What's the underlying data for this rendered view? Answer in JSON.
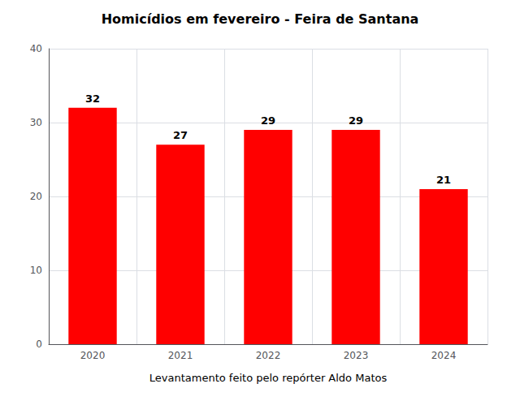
{
  "chart_data": {
    "type": "bar",
    "title": "Homicídios em fevereiro - Feira de Santana",
    "xlabel": "Levantamento feito pelo repórter Aldo Matos",
    "categories": [
      "2020",
      "2021",
      "2022",
      "2023",
      "2024"
    ],
    "values": [
      32,
      27,
      29,
      29,
      21
    ],
    "color": "#ff0000",
    "ylim": [
      0,
      40
    ],
    "yticks": [
      0,
      10,
      20,
      30,
      40
    ],
    "grid": true,
    "data_labels": true
  }
}
